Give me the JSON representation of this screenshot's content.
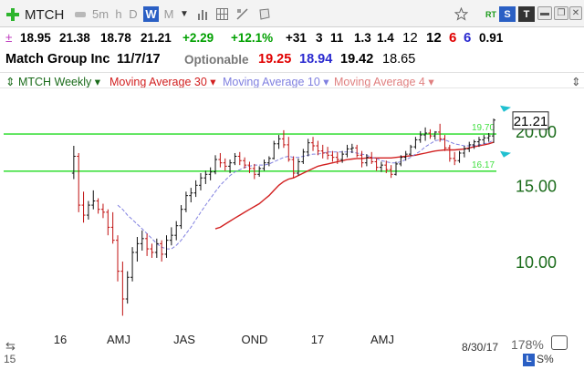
{
  "toolbar": {
    "add_icon": "plus-icon",
    "symbol": "MTCH",
    "periods": [
      "5m",
      "h",
      "D",
      "W",
      "M"
    ],
    "active_period": "W",
    "rt_badge": "RT",
    "s_badge": "S",
    "t_badge": "T"
  },
  "quote": {
    "last": "18.95",
    "high": "21.38",
    "low": "18.78",
    "close": "21.21",
    "change": "+2.29",
    "change_pct": "+12.1%",
    "r1": "+31",
    "r2": "3",
    "r3": "11",
    "r4": "1.3",
    "r5": "1.4",
    "r6": "12",
    "r7": "12",
    "r8": "6",
    "r9": "6",
    "r10": "0.91"
  },
  "info": {
    "company": "Match Group Inc",
    "date": "11/7/17",
    "optionable": "Optionable",
    "v1": "19.25",
    "v2": "18.94",
    "v3": "19.42",
    "v4": "18.65"
  },
  "legend": {
    "series": "MTCH Weekly",
    "ma30": "Moving Average 30",
    "ma10": "Moving Average 10",
    "ma4": "Moving Average 4"
  },
  "colors": {
    "up": "#00a000",
    "down": "#e00000",
    "ma30": "#d22020",
    "ma10": "#8080e0",
    "ma4": "#e08080",
    "hline": "#40e040",
    "axis_label": "#1a6b1a"
  },
  "chart_data": {
    "type": "line",
    "y_scale": "log",
    "ylim": [
      6.5,
      24.5
    ],
    "y_ticks": [
      "20.00",
      "15.00",
      "10.00"
    ],
    "y_tick_values": [
      20,
      15,
      10
    ],
    "x_tick_labels": [
      "16",
      "AMJ",
      "JAS",
      "OND",
      "17",
      "AMJ"
    ],
    "x_year_labels": [
      "2016",
      "2017"
    ],
    "horizontal_lines": [
      {
        "value": 19.7,
        "label": "19.70"
      },
      {
        "value": 16.17,
        "label": "16.17"
      }
    ],
    "last_price_label": "21.21",
    "last_price": 21.21,
    "weeks": 98,
    "bars": [
      [
        16.0,
        18.5,
        15.5,
        17.5
      ],
      [
        17.5,
        17.8,
        13.0,
        13.5
      ],
      [
        13.5,
        14.5,
        12.3,
        12.8
      ],
      [
        12.8,
        13.8,
        12.5,
        13.5
      ],
      [
        13.5,
        14.6,
        13.2,
        13.8
      ],
      [
        13.8,
        14.0,
        12.9,
        13.2
      ],
      [
        13.2,
        13.6,
        12.6,
        13.0
      ],
      [
        13.0,
        13.2,
        11.5,
        12.0
      ],
      [
        12.0,
        13.0,
        11.0,
        11.2
      ],
      [
        11.2,
        11.5,
        9.0,
        9.5
      ],
      [
        9.5,
        10.0,
        7.5,
        8.2
      ],
      [
        8.2,
        9.5,
        8.0,
        9.2
      ],
      [
        9.2,
        10.8,
        9.0,
        10.5
      ],
      [
        10.5,
        11.4,
        10.0,
        11.0
      ],
      [
        11.0,
        11.8,
        10.6,
        11.3
      ],
      [
        11.3,
        11.6,
        10.3,
        10.7
      ],
      [
        10.7,
        11.0,
        10.2,
        10.5
      ],
      [
        10.5,
        11.3,
        10.2,
        11.0
      ],
      [
        11.0,
        11.2,
        10.0,
        10.4
      ],
      [
        10.4,
        11.5,
        10.2,
        11.2
      ],
      [
        11.2,
        12.0,
        10.9,
        11.5
      ],
      [
        11.5,
        12.4,
        11.2,
        12.1
      ],
      [
        12.1,
        13.5,
        11.9,
        13.2
      ],
      [
        13.2,
        14.5,
        13.0,
        14.2
      ],
      [
        14.2,
        14.8,
        13.7,
        14.4
      ],
      [
        14.4,
        15.4,
        14.1,
        15.0
      ],
      [
        15.0,
        16.0,
        14.6,
        15.6
      ],
      [
        15.6,
        16.2,
        15.1,
        15.9
      ],
      [
        15.9,
        16.5,
        15.4,
        16.1
      ],
      [
        16.1,
        17.6,
        15.9,
        17.2
      ],
      [
        17.2,
        17.8,
        16.5,
        16.9
      ],
      [
        16.9,
        17.3,
        16.2,
        16.6
      ],
      [
        16.6,
        17.2,
        16.0,
        16.9
      ],
      [
        16.9,
        17.8,
        16.7,
        17.5
      ],
      [
        17.5,
        17.9,
        16.7,
        17.1
      ],
      [
        17.1,
        17.4,
        16.4,
        16.7
      ],
      [
        16.7,
        17.0,
        16.0,
        16.4
      ],
      [
        16.4,
        16.8,
        15.5,
        15.9
      ],
      [
        15.9,
        16.6,
        15.7,
        16.4
      ],
      [
        16.4,
        17.2,
        16.2,
        16.9
      ],
      [
        16.9,
        17.5,
        16.6,
        17.3
      ],
      [
        17.3,
        19.0,
        17.2,
        18.7
      ],
      [
        18.7,
        19.6,
        18.2,
        19.2
      ],
      [
        19.2,
        20.1,
        18.3,
        18.6
      ],
      [
        18.6,
        19.4,
        17.0,
        17.2
      ],
      [
        17.2,
        17.5,
        15.6,
        16.0
      ],
      [
        16.0,
        17.3,
        15.8,
        17.0
      ],
      [
        17.0,
        18.2,
        16.8,
        17.9
      ],
      [
        17.9,
        19.2,
        17.5,
        18.8
      ],
      [
        18.8,
        19.4,
        18.0,
        18.5
      ],
      [
        18.5,
        19.0,
        17.6,
        18.0
      ],
      [
        18.0,
        18.6,
        17.3,
        17.8
      ],
      [
        17.8,
        18.4,
        17.2,
        17.6
      ],
      [
        17.6,
        18.0,
        17.0,
        17.4
      ],
      [
        17.4,
        17.9,
        16.8,
        17.2
      ],
      [
        17.2,
        18.0,
        16.9,
        17.7
      ],
      [
        17.7,
        18.6,
        17.4,
        18.2
      ],
      [
        18.2,
        18.7,
        17.8,
        18.3
      ],
      [
        18.3,
        18.6,
        17.4,
        17.6
      ],
      [
        17.6,
        18.0,
        16.5,
        16.9
      ],
      [
        16.9,
        17.7,
        16.6,
        17.4
      ],
      [
        17.4,
        17.9,
        16.8,
        17.0
      ],
      [
        17.0,
        17.3,
        16.2,
        16.5
      ],
      [
        16.5,
        17.0,
        16.1,
        16.7
      ],
      [
        16.7,
        17.1,
        16.0,
        16.3
      ],
      [
        16.3,
        16.7,
        15.6,
        15.9
      ],
      [
        15.9,
        17.0,
        15.8,
        16.8
      ],
      [
        16.8,
        17.6,
        16.6,
        17.4
      ],
      [
        17.4,
        18.0,
        17.1,
        17.7
      ],
      [
        17.7,
        18.6,
        17.5,
        18.4
      ],
      [
        18.4,
        19.4,
        18.2,
        19.1
      ],
      [
        19.1,
        20.0,
        18.8,
        19.6
      ],
      [
        19.6,
        20.4,
        19.0,
        19.8
      ],
      [
        19.8,
        20.2,
        19.2,
        19.5
      ],
      [
        19.5,
        20.0,
        19.1,
        19.9
      ],
      [
        19.9,
        20.8,
        18.9,
        19.2
      ],
      [
        19.2,
        19.6,
        18.0,
        18.3
      ],
      [
        18.3,
        18.6,
        17.0,
        17.3
      ],
      [
        17.3,
        17.9,
        16.7,
        17.1
      ],
      [
        17.1,
        18.0,
        16.9,
        17.8
      ],
      [
        17.8,
        18.5,
        17.4,
        18.2
      ],
      [
        18.2,
        18.9,
        17.9,
        18.6
      ],
      [
        18.6,
        19.1,
        18.2,
        18.9
      ],
      [
        18.9,
        19.4,
        18.4,
        19.1
      ],
      [
        19.1,
        19.6,
        18.7,
        19.3
      ],
      [
        19.3,
        19.8,
        18.9,
        19.5
      ],
      [
        19.5,
        21.38,
        18.78,
        21.21
      ]
    ],
    "ma30": [
      null,
      null,
      null,
      null,
      null,
      null,
      null,
      null,
      null,
      null,
      null,
      null,
      null,
      null,
      null,
      null,
      null,
      null,
      null,
      null,
      null,
      null,
      null,
      null,
      null,
      null,
      null,
      null,
      null,
      11.9,
      12.0,
      12.2,
      12.4,
      12.6,
      12.8,
      13.0,
      13.2,
      13.4,
      13.6,
      13.9,
      14.2,
      14.6,
      15.0,
      15.3,
      15.5,
      15.6,
      15.8,
      16.0,
      16.2,
      16.4,
      16.6,
      16.7,
      16.8,
      16.9,
      17.0,
      17.1,
      17.2,
      17.25,
      17.3,
      17.3,
      17.35,
      17.35,
      17.35,
      17.35,
      17.35,
      17.35,
      17.4,
      17.45,
      17.5,
      17.55,
      17.6,
      17.7,
      17.8,
      17.9,
      18.0,
      18.05,
      18.1,
      18.1,
      18.1,
      18.15,
      18.2,
      18.3,
      18.4,
      18.5,
      18.6,
      18.7,
      18.85
    ],
    "ma10": [
      null,
      null,
      null,
      null,
      null,
      null,
      null,
      null,
      null,
      13.5,
      13.2,
      12.8,
      12.5,
      12.2,
      11.9,
      11.6,
      11.3,
      11.0,
      10.8,
      10.7,
      10.7,
      10.9,
      11.2,
      11.6,
      12.0,
      12.5,
      13.0,
      13.5,
      14.0,
      14.5,
      15.0,
      15.4,
      15.8,
      16.1,
      16.3,
      16.5,
      16.6,
      16.7,
      16.7,
      16.7,
      16.8,
      17.0,
      17.2,
      17.4,
      17.5,
      17.4,
      17.4,
      17.5,
      17.6,
      17.7,
      17.7,
      17.8,
      17.9,
      17.9,
      17.9,
      17.9,
      17.9,
      17.9,
      17.8,
      17.7,
      17.6,
      17.4,
      17.3,
      17.1,
      17.0,
      16.9,
      16.9,
      17.0,
      17.2,
      17.4,
      17.7,
      18.0,
      18.4,
      18.7,
      19.0,
      19.1,
      19.1,
      18.9,
      18.7,
      18.6,
      18.5,
      18.5,
      18.5,
      18.6,
      18.7,
      18.8,
      19.1
    ]
  },
  "bottom": {
    "left_text": "15",
    "date": "8/30/17",
    "zoom": "178%",
    "l_badge": "L",
    "s_text": "S%"
  }
}
